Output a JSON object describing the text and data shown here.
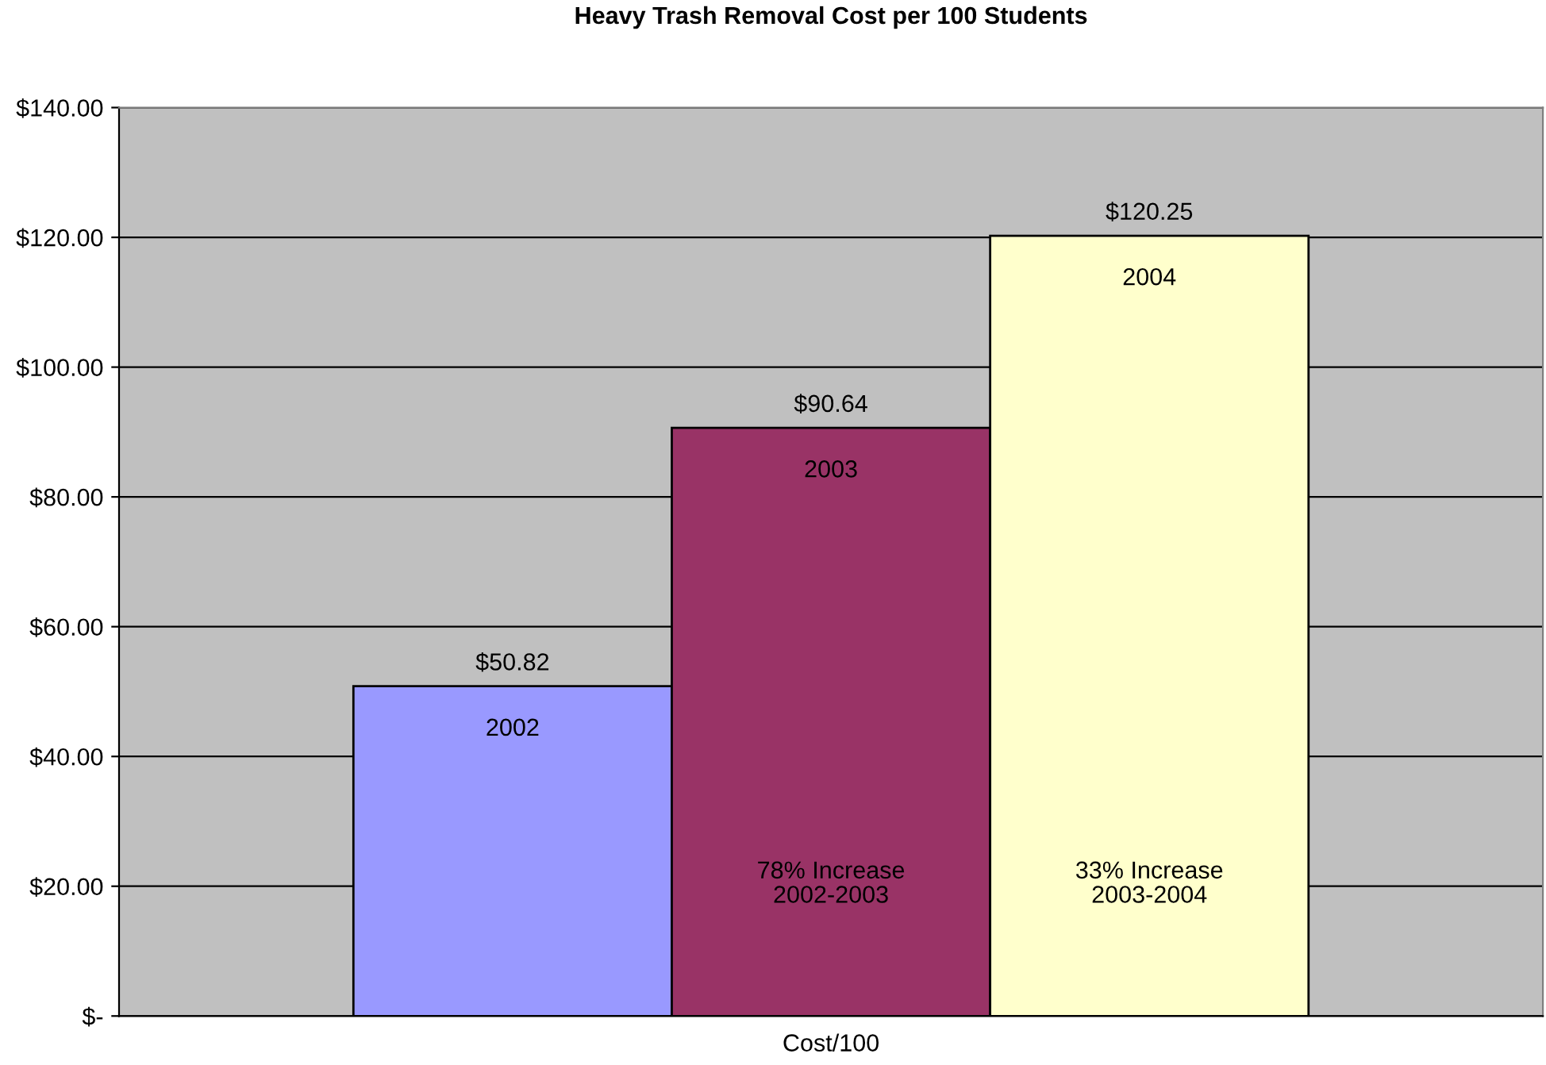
{
  "chart_data": {
    "type": "bar",
    "title": "Heavy Trash Removal Cost per 100 Students",
    "categories": [
      "Cost/100"
    ],
    "series": [
      {
        "name": "2002",
        "color": "#9999ff",
        "values": [
          50.82
        ],
        "value_labels": [
          "$50.82"
        ]
      },
      {
        "name": "2003",
        "color": "#993366",
        "values": [
          90.64
        ],
        "value_labels": [
          "$90.64"
        ]
      },
      {
        "name": "2004",
        "color": "#ffffcc",
        "values": [
          120.25
        ],
        "value_labels": [
          "$120.25"
        ]
      }
    ],
    "ylim": [
      0,
      140
    ],
    "yticks": [
      {
        "value": 0,
        "label": "$-"
      },
      {
        "value": 20,
        "label": "$20.00"
      },
      {
        "value": 40,
        "label": "$40.00"
      },
      {
        "value": 60,
        "label": "$60.00"
      },
      {
        "value": 80,
        "label": "$80.00"
      },
      {
        "value": 100,
        "label": "$100.00"
      },
      {
        "value": 120,
        "label": "$120.00"
      },
      {
        "value": 140,
        "label": "$140.00"
      }
    ],
    "grid": "y",
    "legend": false,
    "annotations": [
      "78% Increase\n2002-2003",
      "33% Increase\n2003-2004"
    ]
  }
}
